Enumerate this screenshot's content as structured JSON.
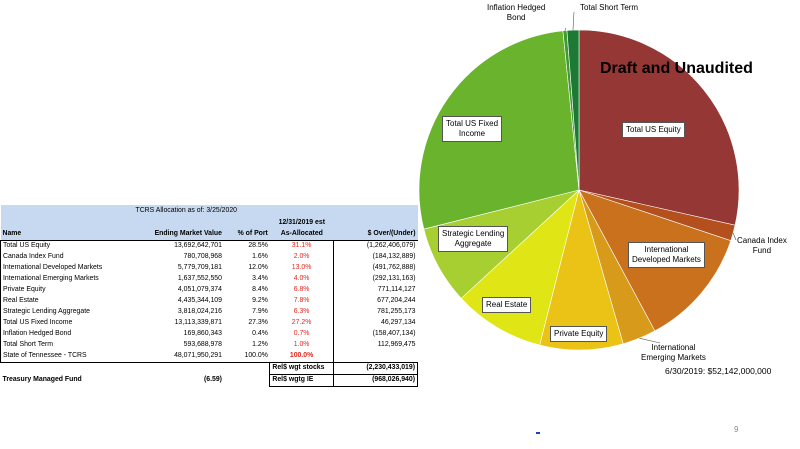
{
  "table": {
    "caption": "TCRS Allocation as of:  3/25/2020",
    "est_header": "12/31/2019 est",
    "columns": [
      "Name",
      "Ending Market Value",
      "% of Port",
      "As-Allocated",
      "$ Over/(Under)"
    ],
    "rows": [
      {
        "name": "Total US Equity",
        "emv": "13,692,642,701",
        "pct": "28.5%",
        "alloc": "31.1%",
        "over": "(1,262,406,079)"
      },
      {
        "name": "Canada Index Fund",
        "emv": "780,708,968",
        "pct": "1.6%",
        "alloc": "2.0%",
        "over": "(184,132,889)"
      },
      {
        "name": "International Developed Markets",
        "emv": "5,779,709,181",
        "pct": "12.0%",
        "alloc": "13.0%",
        "over": "(491,762,888)"
      },
      {
        "name": "International Emerging Markets",
        "emv": "1,637,552,550",
        "pct": "3.4%",
        "alloc": "4.0%",
        "over": "(292,131,163)"
      },
      {
        "name": "Private Equity",
        "emv": "4,051,079,374",
        "pct": "8.4%",
        "alloc": "6.8%",
        "over": "771,114,127"
      },
      {
        "name": "Real Estate",
        "emv": "4,435,344,109",
        "pct": "9.2%",
        "alloc": "7.8%",
        "over": "677,204,244"
      },
      {
        "name": "Strategic Lending Aggregate",
        "emv": "3,818,024,216",
        "pct": "7.9%",
        "alloc": "6.3%",
        "over": "781,255,173"
      },
      {
        "name": "Total US Fixed Income",
        "emv": "13,113,339,871",
        "pct": "27.3%",
        "alloc": "27.2%",
        "over": "46,297,134"
      },
      {
        "name": "Inflation Hedged Bond",
        "emv": "169,860,343",
        "pct": "0.4%",
        "alloc": "0.7%",
        "over": "(158,407,134)"
      },
      {
        "name": "Total Short Term",
        "emv": "593,688,978",
        "pct": "1.2%",
        "alloc": "1.0%",
        "over": "112,969,475"
      }
    ],
    "total": {
      "name": "State of Tennessee - TCRS",
      "emv": "48,071,950,291",
      "pct": "100.0%",
      "alloc": "100.0%"
    },
    "rel_stocks": {
      "label": "Rel$ wgt stocks",
      "value": "(2,230,433,019)"
    },
    "treasury": {
      "name": "Treasury Managed Fund",
      "value": "(6.59)",
      "label": "Rel$ wgtg IE",
      "over": "(968,026,940)"
    }
  },
  "draft_label": "Draft and Unaudited",
  "footnote": "6/30/2019:  $52,142,000,000",
  "page_number": "9",
  "chart_data": {
    "type": "pie",
    "title": "",
    "slices": [
      {
        "label": "Total US Equity",
        "value": 28.5,
        "color": "#953735"
      },
      {
        "label": "Canada Index Fund",
        "value": 1.6,
        "color": "#b4501e"
      },
      {
        "label": "International Developed Markets",
        "value": 12.0,
        "color": "#c9711c"
      },
      {
        "label": "International Emerging Markets",
        "value": 3.4,
        "color": "#d79a1a"
      },
      {
        "label": "Private Equity",
        "value": 8.4,
        "color": "#ebc316"
      },
      {
        "label": "Real Estate",
        "value": 9.2,
        "color": "#e0e516"
      },
      {
        "label": "Strategic Lending Aggregate",
        "value": 7.9,
        "color": "#a8cf32"
      },
      {
        "label": "Total US Fixed Income",
        "value": 27.3,
        "color": "#6ab42d"
      },
      {
        "label": "Inflation Hedged Bond",
        "value": 0.4,
        "color": "#3f9b2f"
      },
      {
        "label": "Total Short Term",
        "value": 1.2,
        "color": "#1c7a35"
      }
    ],
    "slice_labels": {
      "us_equity": "Total US Equity",
      "canada": [
        "Canada Index",
        "Fund"
      ],
      "intl_dev": [
        "International",
        "Developed Markets"
      ],
      "intl_em": [
        "International",
        "Emerging Markets"
      ],
      "private_equity": "Private Equity",
      "real_estate": "Real Estate",
      "strategic": [
        "Strategic Lending",
        "Aggregate"
      ],
      "fixed_income": [
        "Total US Fixed",
        "Income"
      ],
      "inflation": [
        "Inflation Hedged",
        "Bond"
      ],
      "short_term": "Total Short Term"
    }
  }
}
